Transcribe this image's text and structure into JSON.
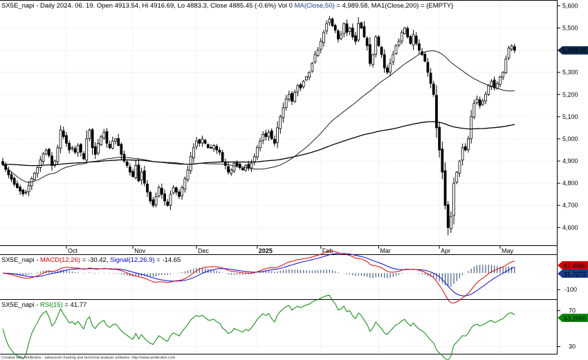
{
  "colors": {
    "background": "#ffffff",
    "candle_up_fill": "#ffffff",
    "candle_down_fill": "#000000",
    "candle_stroke": "#000000",
    "ma50": "#1a1a2e",
    "ma200": "#000000",
    "macd": "#e00000",
    "signal": "#0000dd",
    "histogram": "#1a3c6e",
    "rsi": "#008800",
    "grid": "#c8c8c8",
    "label_close_bg": "#0d2a4d",
    "label_macd_bg": "#d40000",
    "label_signal_bg": "#1a3c8e",
    "label_rsi_bg": "#0a8a0a"
  },
  "header": {
    "symbol": "SX5E_napi",
    "info": " - Daily 2024. 06. 19. Open 4913.54, Hi 4916.69, Lo 4883.3, Close 4885.45 (-0.6%) Vol 0 ",
    "ma50_text": "MA(Close,50)",
    "ma50_value": " = 4,989.58, ",
    "ma200_text": "MA1(Close,200)",
    "ma200_value": " = {EMPTY}"
  },
  "macd_header": {
    "symbol": "SX5E_napi",
    "sep": " - ",
    "macd_text": "MACD(12,26)",
    "macd_value": " = -30.42, ",
    "signal_text": "Signal(12,26,9)",
    "signal_value": " = -14.65"
  },
  "rsi_header": {
    "symbol": "SX5E_napi",
    "sep": " - ",
    "rsi_text": "RSI(15)",
    "rsi_value": " = 41.77"
  },
  "footer": "Created with AmiBroker - advanced charting and technical analysis software. http://www.amibroker.com",
  "chart_data": [
    {
      "type": "candlestick",
      "panel": "price",
      "ylim": [
        4520,
        5620
      ],
      "yticks": [
        4600,
        4700,
        4800,
        4900,
        5000,
        5100,
        5200,
        5300,
        5400,
        5500,
        5600
      ],
      "ytick_labels": [
        "4,600",
        "4,700",
        "4,800",
        "4,900",
        "5,000",
        "5,100",
        "5,200",
        "5,300",
        "5,400",
        "5,500",
        "5,600"
      ],
      "x_labels": [
        {
          "label": "Oct",
          "bar": 22,
          "bold": false
        },
        {
          "label": "Nov",
          "bar": 45,
          "bold": false
        },
        {
          "label": "Dec",
          "bar": 67,
          "bold": false
        },
        {
          "label": "2025",
          "bar": 88,
          "bold": true
        },
        {
          "label": "Feb",
          "bar": 110,
          "bold": false
        },
        {
          "label": "Mar",
          "bar": 130,
          "bold": false
        },
        {
          "label": "Apr",
          "bar": 151,
          "bold": false
        },
        {
          "label": "May",
          "bar": 172,
          "bold": false
        }
      ],
      "last_value_label": "5,399.05",
      "last_value": 5399.05,
      "closes": [
        4885,
        4862,
        4838,
        4818,
        4795,
        4780,
        4765,
        4752,
        4760,
        4790,
        4820,
        4845,
        4870,
        4905,
        4932,
        4948,
        4925,
        4880,
        4900,
        4960,
        5040,
        5010,
        4980,
        4950,
        4960,
        4940,
        4970,
        4940,
        4910,
        5000,
        5040,
        4960,
        4930,
        4980,
        5010,
        5030,
        4980,
        4960,
        4990,
        5000,
        4970,
        4930,
        4900,
        4880,
        4850,
        4830,
        4880,
        4810,
        4850,
        4800,
        4760,
        4720,
        4700,
        4740,
        4780,
        4750,
        4720,
        4700,
        4750,
        4780,
        4760,
        4740,
        4780,
        4820,
        4860,
        4920,
        4960,
        4990,
        4980,
        5000,
        4980,
        4960,
        4960,
        4970,
        4950,
        4940,
        4900,
        4880,
        4850,
        4860,
        4890,
        4880,
        4870,
        4860,
        4880,
        4870,
        4890,
        4920,
        4960,
        4990,
        5020,
        5010,
        5030,
        5000,
        4980,
        5050,
        5100,
        5140,
        5180,
        5200,
        5170,
        5210,
        5240,
        5230,
        5260,
        5280,
        5300,
        5340,
        5380,
        5400,
        5440,
        5480,
        5520,
        5540,
        5510,
        5490,
        5450,
        5470,
        5520,
        5480,
        5500,
        5460,
        5440,
        5520,
        5500,
        5460,
        5420,
        5340,
        5380,
        5460,
        5420,
        5380,
        5320,
        5300,
        5340,
        5380,
        5420,
        5440,
        5480,
        5500,
        5460,
        5430,
        5470,
        5430,
        5400,
        5380,
        5350,
        5300,
        5250,
        5200,
        5050,
        4950,
        4850,
        4700,
        4600,
        4650,
        4800,
        4850,
        4900,
        4960,
        4950,
        5000,
        5100,
        5160,
        5180,
        5150,
        5170,
        5200,
        5240,
        5260,
        5230,
        5250,
        5280,
        5300,
        5360,
        5410,
        5420,
        5399
      ]
    },
    {
      "type": "line",
      "panel": "macd",
      "ylim": [
        -158,
        110
      ],
      "yticks": [
        -100
      ],
      "ytick_labels": [
        "-100"
      ],
      "series": [
        {
          "name": "MACD(12,26)",
          "last_value_label": "67.4560"
        },
        {
          "name": "Signal(12,26,9)",
          "last_value_label": "31.7272"
        }
      ]
    },
    {
      "type": "line",
      "panel": "rsi",
      "ylim": [
        22,
        82
      ],
      "yticks": [
        30,
        70
      ],
      "ytick_labels": [
        "30",
        "70"
      ],
      "series": [
        {
          "name": "RSI(15)",
          "period": 15,
          "last_value_label": "63.2055"
        }
      ]
    }
  ]
}
